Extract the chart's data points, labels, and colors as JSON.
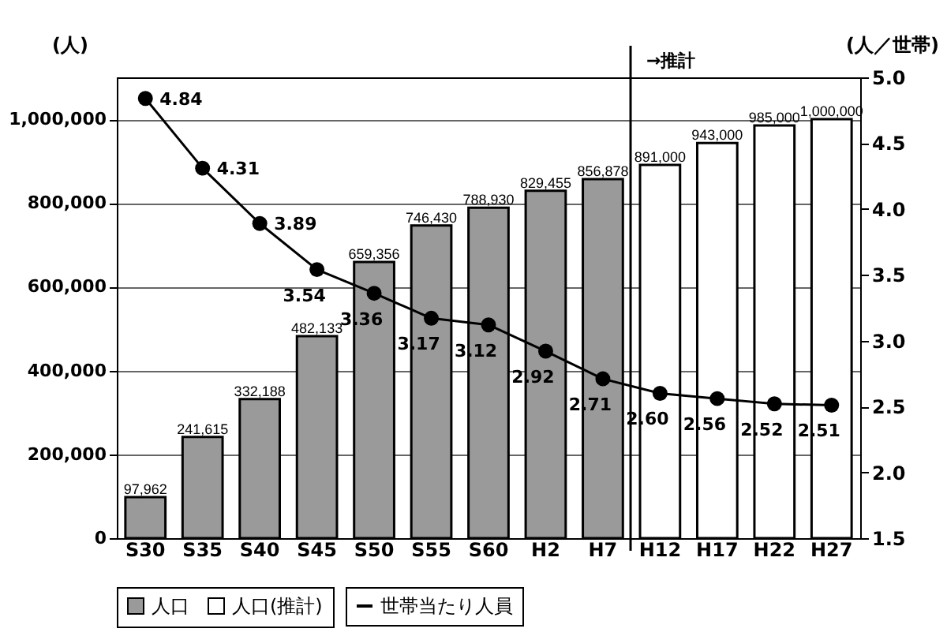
{
  "chart_data": {
    "type": "bar",
    "ylabel": "(人)",
    "y2label": "(人／世帯)",
    "categories": [
      "S30",
      "S35",
      "S40",
      "S45",
      "S50",
      "S55",
      "S60",
      "H2",
      "H7",
      "H12",
      "H17",
      "H22",
      "H27"
    ],
    "series": [
      {
        "name": "人口",
        "color": "#9a9a9a",
        "values": [
          97962,
          241615,
          332188,
          482133,
          659356,
          746430,
          788930,
          829455,
          856878,
          null,
          null,
          null,
          null
        ],
        "value_labels": [
          "97,962",
          "241,615",
          "332,188",
          "482,133",
          "659,356",
          "746,430",
          "788,930",
          "829,455",
          "856,878",
          null,
          null,
          null,
          null
        ]
      },
      {
        "name": "人口(推計)",
        "color": "#ffffff",
        "values": [
          null,
          null,
          null,
          null,
          null,
          null,
          null,
          null,
          null,
          891000,
          943000,
          985000,
          1000000
        ],
        "value_labels": [
          null,
          null,
          null,
          null,
          null,
          null,
          null,
          null,
          null,
          "891,000",
          "943,000",
          "985,000",
          "1,000,000"
        ]
      },
      {
        "name": "世帯当たり人員",
        "type": "line",
        "axis": "y2",
        "color": "#000000",
        "marker": "circle",
        "line_style": "solid",
        "values": [
          4.84,
          4.31,
          3.89,
          3.54,
          3.36,
          3.17,
          3.12,
          2.92,
          2.71,
          2.6,
          2.56,
          2.52,
          2.51
        ],
        "value_labels": [
          "4.84",
          "4.31",
          "3.89",
          "3.54",
          "3.36",
          "3.17",
          "3.12",
          "2.92",
          "2.71",
          "2.60",
          "2.56",
          "2.52",
          "2.51"
        ]
      }
    ],
    "ylim": [
      0,
      1100000
    ],
    "yticks": [
      0,
      {
        "value": 200000,
        "label": "200,000"
      },
      {
        "value": 400000,
        "label": "400,000"
      },
      {
        "value": 600000,
        "label": "600,000"
      },
      {
        "value": 800000,
        "label": "800,000"
      },
      {
        "value": 1000000,
        "label": "1,000,000"
      }
    ],
    "y2lim": [
      1.5,
      5.0
    ],
    "y2ticks": [
      1.5,
      {
        "value": 2,
        "label": "2.0"
      },
      2.5,
      {
        "value": 3,
        "label": "3.0"
      },
      3.5,
      {
        "value": 4,
        "label": "4.0"
      },
      4.5,
      {
        "value": 5,
        "label": "5.0"
      }
    ],
    "ref_lines": [
      {
        "axis": "x",
        "value": "H12",
        "label": "→推計",
        "color": "#000000"
      }
    ],
    "grid": "y",
    "legend": "bottom"
  }
}
